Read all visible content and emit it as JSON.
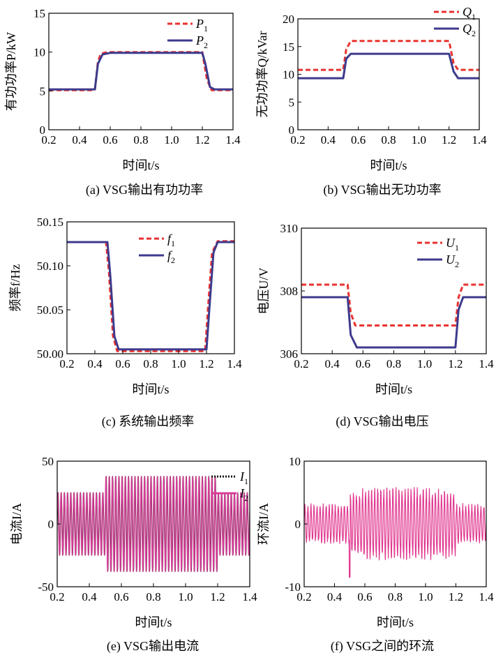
{
  "chart_data": [
    {
      "id": "a",
      "type": "line",
      "caption": "(a) VSG输出有功功率",
      "xlabel": "时间t/s",
      "ylabel": "有功功率P/kW",
      "xlim": [
        0.2,
        1.4
      ],
      "ylim": [
        0,
        15
      ],
      "xticks": [
        "0.2",
        "0.4",
        "0.6",
        "0.8",
        "1.0",
        "1.2",
        "1.4"
      ],
      "yticks": [
        "0",
        "5",
        "10",
        "15"
      ],
      "legend_position": "top-right",
      "series": [
        {
          "name": "P",
          "sub": "1",
          "color": "#e8322f",
          "dash": "dashed",
          "x": [
            0.2,
            0.5,
            0.52,
            0.54,
            0.58,
            1.2,
            1.23,
            1.26,
            1.4
          ],
          "y": [
            5.1,
            5.1,
            8.8,
            9.8,
            10.0,
            10.0,
            6.5,
            5.1,
            5.1
          ]
        },
        {
          "name": "P",
          "sub": "2",
          "color": "#3d3a8c",
          "dash": "solid",
          "x": [
            0.2,
            0.5,
            0.52,
            0.55,
            0.6,
            1.2,
            1.22,
            1.25,
            1.28,
            1.4
          ],
          "y": [
            5.2,
            5.2,
            8.5,
            9.7,
            9.9,
            9.9,
            8.5,
            5.5,
            5.2,
            5.2
          ]
        }
      ]
    },
    {
      "id": "b",
      "type": "line",
      "caption": "(b) VSG输出无功功率",
      "xlabel": "时间t/s",
      "ylabel": "无功功率Q/kVar",
      "xlim": [
        0.2,
        1.4
      ],
      "ylim": [
        0,
        20
      ],
      "xticks": [
        "0.2",
        "0.4",
        "0.6",
        "0.8",
        "1.0",
        "1.2",
        "1.4"
      ],
      "yticks": [
        "0",
        "5",
        "10",
        "15",
        "20"
      ],
      "legend_position": "top-right",
      "series": [
        {
          "name": "Q",
          "sub": "1",
          "color": "#e8322f",
          "dash": "dashed",
          "x": [
            0.2,
            0.5,
            0.52,
            0.55,
            1.2,
            1.23,
            1.26,
            1.4
          ],
          "y": [
            10.8,
            10.8,
            14.5,
            16.0,
            16.0,
            12.0,
            10.8,
            10.8
          ]
        },
        {
          "name": "Q",
          "sub": "2",
          "color": "#3d3a8c",
          "dash": "solid",
          "x": [
            0.2,
            0.5,
            0.52,
            0.55,
            1.2,
            1.23,
            1.26,
            1.4
          ],
          "y": [
            9.3,
            9.3,
            12.8,
            13.7,
            13.7,
            10.5,
            9.3,
            9.3
          ]
        }
      ]
    },
    {
      "id": "c",
      "type": "line",
      "caption": "(c) 系统输出频率",
      "xlabel": "时间t/s",
      "ylabel": "频率f/Hz",
      "xlim": [
        0.2,
        1.4
      ],
      "ylim": [
        50.0,
        50.15
      ],
      "xticks": [
        "0.2",
        "0.4",
        "0.6",
        "0.8",
        "1.0",
        "1.2",
        "1.4"
      ],
      "yticks": [
        "50.00",
        "50.05",
        "50.10",
        "50.15"
      ],
      "legend_position": "top-center",
      "series": [
        {
          "name": "f",
          "sub": "1",
          "color": "#e8322f",
          "dash": "dashed",
          "x": [
            0.2,
            0.48,
            0.5,
            0.53,
            0.56,
            1.19,
            1.21,
            1.24,
            1.28,
            1.4
          ],
          "y": [
            50.127,
            50.127,
            50.095,
            50.02,
            50.003,
            50.003,
            50.05,
            50.115,
            50.128,
            50.128
          ]
        },
        {
          "name": "f",
          "sub": "2",
          "color": "#3d3a8c",
          "dash": "solid",
          "x": [
            0.2,
            0.49,
            0.51,
            0.54,
            0.57,
            1.2,
            1.22,
            1.25,
            1.28,
            1.4
          ],
          "y": [
            50.127,
            50.127,
            50.09,
            50.02,
            50.005,
            50.005,
            50.05,
            50.115,
            50.127,
            50.127
          ]
        }
      ]
    },
    {
      "id": "d",
      "type": "line",
      "caption": "(d) VSG输出电压",
      "xlabel": "时间t/s",
      "ylabel": "电压U/V",
      "xlim": [
        0.2,
        1.4
      ],
      "ylim": [
        306,
        310
      ],
      "xticks": [
        "0.2",
        "0.4",
        "0.6",
        "0.8",
        "1.0",
        "1.2",
        "1.4"
      ],
      "yticks": [
        "306",
        "308",
        "310"
      ],
      "legend_position": "top-right",
      "series": [
        {
          "name": "U",
          "sub": "1",
          "color": "#e8322f",
          "dash": "dashed",
          "x": [
            0.2,
            0.5,
            0.52,
            0.55,
            1.2,
            1.22,
            1.25,
            1.4
          ],
          "y": [
            308.2,
            308.2,
            307.3,
            306.9,
            306.9,
            307.8,
            308.2,
            308.2
          ]
        },
        {
          "name": "U",
          "sub": "2",
          "color": "#3d3a8c",
          "dash": "solid",
          "x": [
            0.2,
            0.5,
            0.52,
            0.56,
            1.2,
            1.22,
            1.25,
            1.4
          ],
          "y": [
            307.8,
            307.8,
            306.6,
            306.2,
            306.2,
            307.4,
            307.8,
            307.8
          ]
        }
      ]
    },
    {
      "id": "e",
      "type": "line",
      "caption": "(e) VSG输出电流",
      "xlabel": "时间t/s",
      "ylabel": "电流I/A",
      "xlim": [
        0.2,
        1.4
      ],
      "ylim": [
        -50,
        50
      ],
      "xticks": [
        "0.2",
        "0.4",
        "0.6",
        "0.8",
        "1.0",
        "1.2",
        "1.4"
      ],
      "yticks": [
        "-50",
        "0",
        "50"
      ],
      "legend_position": "top-right",
      "series": [
        {
          "name": "I",
          "sub": "1",
          "color": "#111111",
          "dash": "dotted",
          "envelope_t": [
            0.2,
            0.5,
            0.5,
            1.2,
            1.2,
            1.4
          ],
          "envelope_amp": [
            25,
            25,
            38,
            38,
            25,
            25
          ],
          "frequency_hz": 50
        },
        {
          "name": "I",
          "sub": "2",
          "color": "#d93c98",
          "dash": "solid",
          "envelope_t": [
            0.2,
            0.5,
            0.5,
            1.2,
            1.2,
            1.4
          ],
          "envelope_amp": [
            25,
            25,
            38,
            38,
            25,
            25
          ],
          "frequency_hz": 50
        }
      ]
    },
    {
      "id": "f",
      "type": "line",
      "caption": "(f) VSG之间的环流",
      "xlabel": "时间t/s",
      "ylabel": "环流I/A",
      "xlim": [
        0.2,
        1.4
      ],
      "ylim": [
        -10,
        10
      ],
      "xticks": [
        "0.2",
        "0.4",
        "0.6",
        "0.8",
        "1.0",
        "1.2",
        "1.4"
      ],
      "yticks": [
        "-10",
        "0",
        "10"
      ],
      "series": [
        {
          "name": "",
          "color": "#e0368f",
          "dash": "solid",
          "envelope_t": [
            0.2,
            0.5,
            0.5,
            0.7,
            1.0,
            1.2,
            1.2,
            1.4
          ],
          "envelope_amp": [
            3.3,
            3.3,
            5.5,
            6.0,
            5.8,
            5.5,
            3.3,
            3.3
          ],
          "frequency_hz": 50,
          "spike_t": 0.5,
          "spike_min": -8.5
        }
      ]
    }
  ]
}
